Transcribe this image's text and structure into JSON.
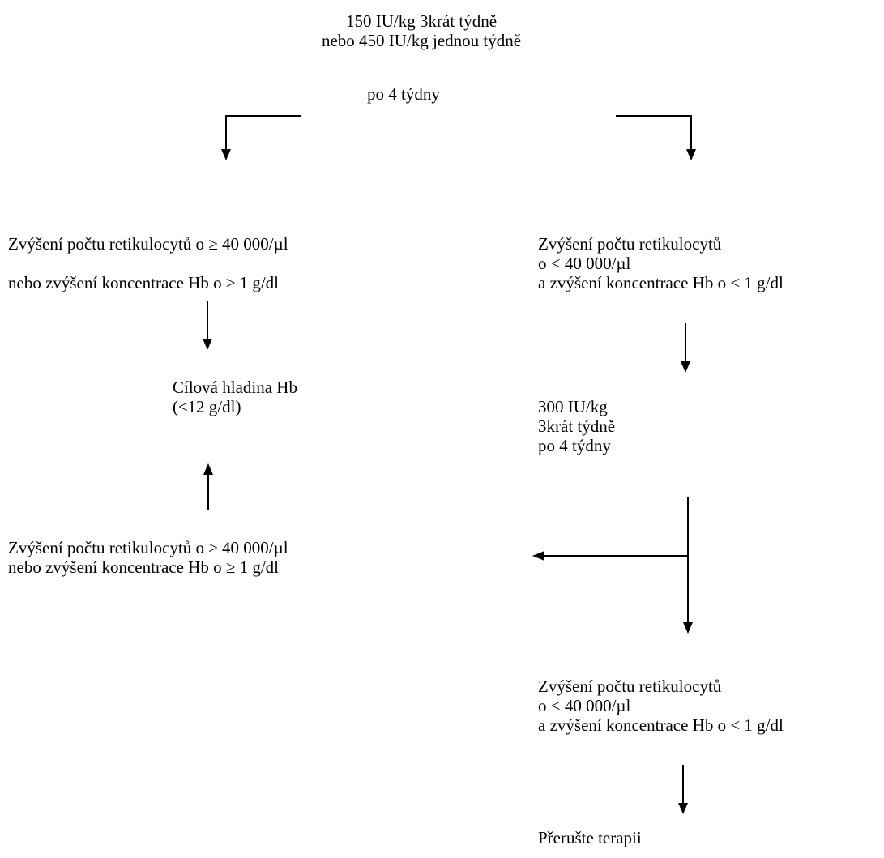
{
  "start": {
    "line1": "150 IU/kg 3krát týdně",
    "line2": "nebo 450 IU/kg jednou týdně"
  },
  "duration": "po 4 týdny",
  "left_response": {
    "line1": "Zvýšení počtu retikulocytů o ≥ 40 000/µl",
    "line2": "nebo zvýšení koncentrace Hb o ≥ 1 g/dl"
  },
  "target": {
    "line1": "Cílová hladina Hb",
    "line2": "(≤12 g/dl)"
  },
  "left_response_2": {
    "line1": "Zvýšení počtu retikulocytů o ≥ 40 000/µl",
    "line2": "nebo zvýšení koncentrace Hb o ≥ 1 g/dl"
  },
  "right_no_response": {
    "line1": "Zvýšení počtu retikulocytů",
    "line2": "o < 40 000/µl",
    "line3": "a zvýšení koncentrace Hb o < 1 g/dl"
  },
  "increased_dose": {
    "line1": "300 IU/kg",
    "line2": "3krát týdně",
    "line3": "po 4 týdny"
  },
  "right_no_response_2": {
    "line1": "Zvýšení počtu retikulocytů",
    "line2": "o < 40 000/µl",
    "line3": "a zvýšení koncentrace Hb o < 1 g/dl"
  },
  "stop": "Přerušte terapii"
}
